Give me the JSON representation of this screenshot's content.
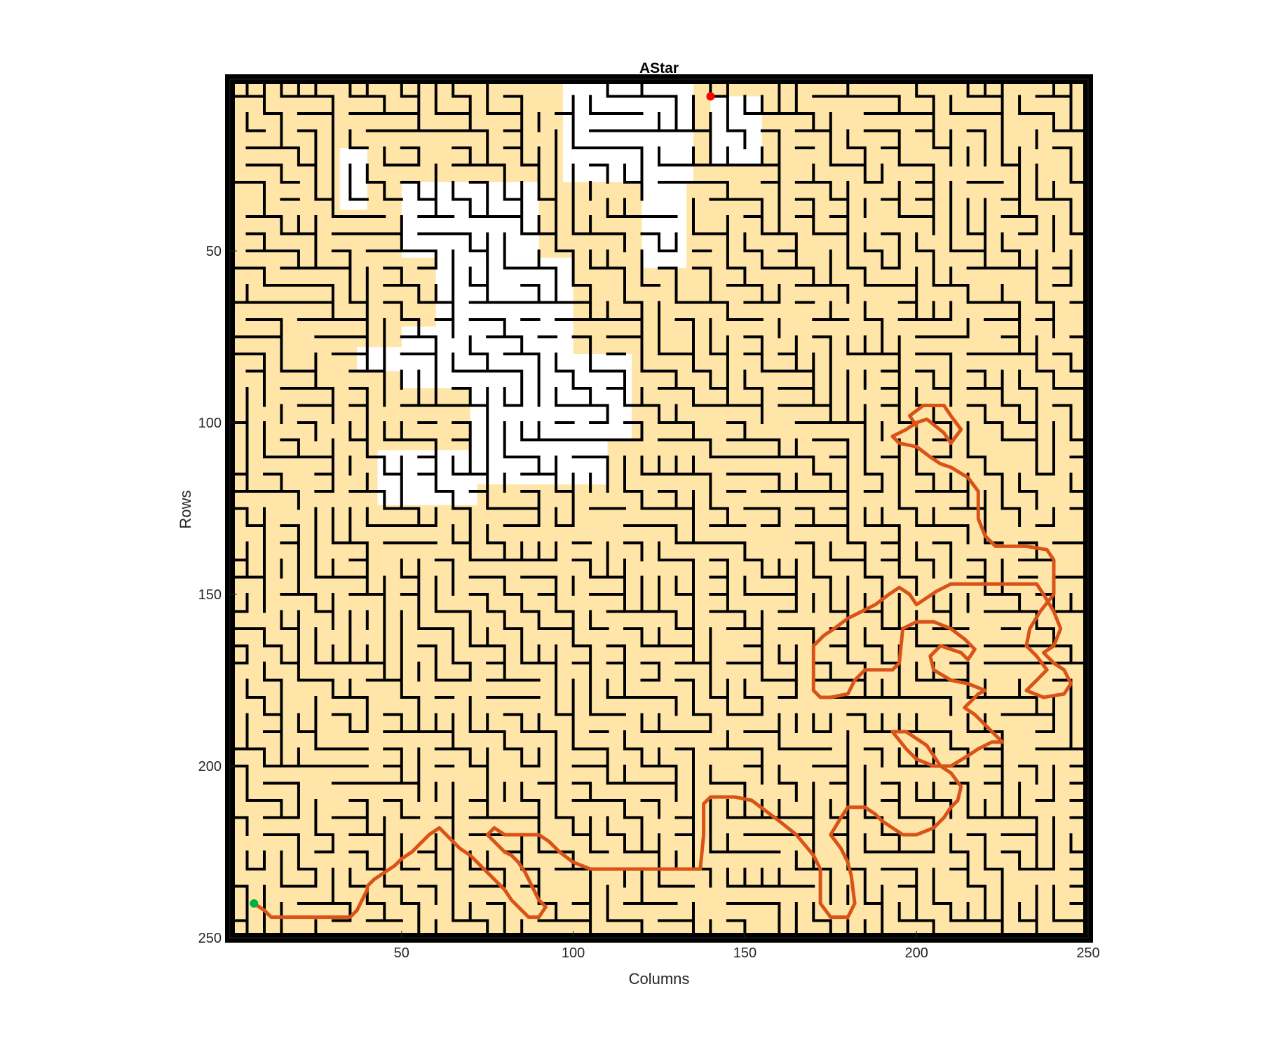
{
  "chart_data": {
    "type": "scatter",
    "title": "AStar",
    "xlabel": "Columns",
    "ylabel": "Rows",
    "xlim": [
      0,
      250
    ],
    "ylim": [
      250,
      0
    ],
    "y_reversed": true,
    "xticks": [
      50,
      100,
      150,
      200,
      250
    ],
    "yticks": [
      50,
      100,
      150,
      200,
      250
    ],
    "grid": false,
    "legend": "none",
    "colors": {
      "explored": "#FFE6A8",
      "unexplored": "#FFFFFF",
      "wall": "#000000",
      "path": "#D95319",
      "start": "#00B040",
      "goal": "#FF0000"
    },
    "start_point": {
      "x": 7,
      "y": 240
    },
    "goal_point": {
      "x": 140,
      "y": 5
    },
    "path": [
      [
        7,
        240
      ],
      [
        10,
        242
      ],
      [
        12,
        244
      ],
      [
        35,
        244
      ],
      [
        37,
        242
      ],
      [
        40,
        236
      ],
      [
        40,
        235
      ],
      [
        42,
        233
      ],
      [
        45,
        231
      ],
      [
        48,
        229
      ],
      [
        50,
        227
      ],
      [
        53,
        225
      ],
      [
        56,
        222
      ],
      [
        58,
        220
      ],
      [
        61,
        218
      ],
      [
        63,
        220
      ],
      [
        65,
        222
      ],
      [
        67,
        224
      ],
      [
        70,
        226
      ],
      [
        72,
        228
      ],
      [
        74,
        230
      ],
      [
        77,
        233
      ],
      [
        80,
        236
      ],
      [
        82,
        239
      ],
      [
        85,
        242
      ],
      [
        87,
        244
      ],
      [
        90,
        244
      ],
      [
        92,
        241
      ],
      [
        90,
        239
      ],
      [
        88,
        235
      ],
      [
        86,
        231
      ],
      [
        84,
        228
      ],
      [
        82,
        226
      ],
      [
        80,
        225
      ],
      [
        75,
        220
      ],
      [
        77,
        218
      ],
      [
        80,
        220
      ],
      [
        90,
        220
      ],
      [
        93,
        222
      ],
      [
        96,
        225
      ],
      [
        100,
        228
      ],
      [
        105,
        230
      ],
      [
        120,
        230
      ],
      [
        130,
        230
      ],
      [
        137,
        230
      ],
      [
        138,
        220
      ],
      [
        138,
        211
      ],
      [
        140,
        209
      ],
      [
        147,
        209
      ],
      [
        152,
        210
      ],
      [
        156,
        213
      ],
      [
        160,
        216
      ],
      [
        165,
        220
      ],
      [
        170,
        226
      ],
      [
        172,
        230
      ],
      [
        172,
        240
      ],
      [
        175,
        244
      ],
      [
        180,
        244
      ],
      [
        182,
        240
      ],
      [
        181,
        232
      ],
      [
        180,
        228
      ],
      [
        178,
        224
      ],
      [
        175,
        220
      ],
      [
        178,
        215
      ],
      [
        180,
        212
      ],
      [
        185,
        212
      ],
      [
        188,
        214
      ],
      [
        190,
        216
      ],
      [
        193,
        218
      ],
      [
        196,
        220
      ],
      [
        200,
        220
      ],
      [
        205,
        218
      ],
      [
        208,
        215
      ],
      [
        210,
        212
      ],
      [
        212,
        210
      ],
      [
        213,
        206
      ],
      [
        210,
        202
      ],
      [
        207,
        200
      ],
      [
        205,
        197
      ],
      [
        203,
        194
      ],
      [
        200,
        192
      ],
      [
        197,
        190
      ],
      [
        193,
        190
      ],
      [
        197,
        195
      ],
      [
        200,
        198
      ],
      [
        205,
        200
      ],
      [
        210,
        200
      ],
      [
        215,
        197
      ],
      [
        218,
        195
      ],
      [
        222,
        193
      ],
      [
        225,
        193
      ],
      [
        222,
        190
      ],
      [
        220,
        188
      ],
      [
        217,
        185
      ],
      [
        214,
        183
      ],
      [
        218,
        179
      ],
      [
        220,
        178
      ],
      [
        215,
        176
      ],
      [
        210,
        175
      ],
      [
        205,
        172
      ],
      [
        204,
        168
      ],
      [
        207,
        165
      ],
      [
        213,
        167
      ],
      [
        215,
        169
      ],
      [
        217,
        166
      ],
      [
        214,
        163
      ],
      [
        210,
        160
      ],
      [
        205,
        158
      ],
      [
        200,
        158
      ],
      [
        196,
        160
      ],
      [
        195,
        170
      ],
      [
        193,
        172
      ],
      [
        185,
        172
      ],
      [
        182,
        175
      ],
      [
        180,
        179
      ],
      [
        175,
        180
      ],
      [
        172,
        180
      ],
      [
        170,
        178
      ],
      [
        170,
        165
      ],
      [
        173,
        162
      ],
      [
        176,
        160
      ],
      [
        180,
        157
      ],
      [
        184,
        155
      ],
      [
        188,
        153
      ],
      [
        192,
        150
      ],
      [
        195,
        148
      ],
      [
        198,
        150
      ],
      [
        200,
        153
      ],
      [
        203,
        151
      ],
      [
        206,
        149
      ],
      [
        210,
        147
      ],
      [
        220,
        147
      ],
      [
        230,
        147
      ],
      [
        235,
        147
      ],
      [
        237,
        150
      ],
      [
        240,
        155
      ],
      [
        242,
        160
      ],
      [
        240,
        165
      ],
      [
        237,
        167
      ],
      [
        240,
        170
      ],
      [
        243,
        172
      ],
      [
        245,
        176
      ],
      [
        243,
        179
      ],
      [
        237,
        180
      ],
      [
        232,
        178
      ],
      [
        235,
        175
      ],
      [
        238,
        172
      ],
      [
        235,
        168
      ],
      [
        232,
        165
      ],
      [
        233,
        160
      ],
      [
        236,
        155
      ],
      [
        240,
        150
      ],
      [
        240,
        140
      ],
      [
        238,
        137
      ],
      [
        232,
        136
      ],
      [
        223,
        136
      ],
      [
        220,
        133
      ],
      [
        218,
        128
      ],
      [
        218,
        120
      ],
      [
        215,
        116
      ],
      [
        210,
        113
      ],
      [
        207,
        112
      ],
      [
        204,
        110
      ],
      [
        200,
        107
      ],
      [
        195,
        106
      ],
      [
        193,
        104
      ],
      [
        197,
        102
      ],
      [
        200,
        100
      ],
      [
        203,
        99
      ],
      [
        208,
        103
      ],
      [
        210,
        106
      ],
      [
        213,
        102
      ],
      [
        210,
        98
      ],
      [
        208,
        95
      ],
      [
        202,
        95
      ],
      [
        198,
        98
      ],
      [
        200,
        101
      ]
    ]
  }
}
